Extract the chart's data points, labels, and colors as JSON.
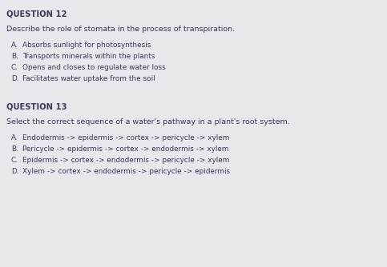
{
  "background_color": "#e8e8ec",
  "text_color": "#3a3a5a",
  "q12_header": "QUESTION 12",
  "q12_prompt": "Describe the role of stomata in the process of transpiration.",
  "q12_options": [
    [
      "A.",
      "Absorbs sunlight for photosynthesis"
    ],
    [
      "B.",
      "Transports minerals within the plants"
    ],
    [
      "C.",
      "Opens and closes to regulate water loss"
    ],
    [
      "D.",
      "Facilitates water uptake from the soil"
    ]
  ],
  "q13_header": "QUESTION 13",
  "q13_prompt": "Select the correct sequence of a water's pathway in a plant's root system.",
  "q13_options": [
    [
      "A.",
      "Endodermis -> epidermis -> cortex -> pericycle -> xylem"
    ],
    [
      "B.",
      "Pericycle -> epidermis -> cortex -> endodermis -> xylem"
    ],
    [
      "C.",
      "Epidermis -> cortex -> endodermis -> pericycle -> xylem"
    ],
    [
      "D.",
      "Xylem -> cortex -> endodermis -> pericycle -> epidermis"
    ]
  ],
  "header_fontsize": 7.2,
  "prompt_fontsize": 6.8,
  "option_fontsize": 6.4,
  "fig_width": 4.83,
  "fig_height": 3.34,
  "dpi": 100
}
